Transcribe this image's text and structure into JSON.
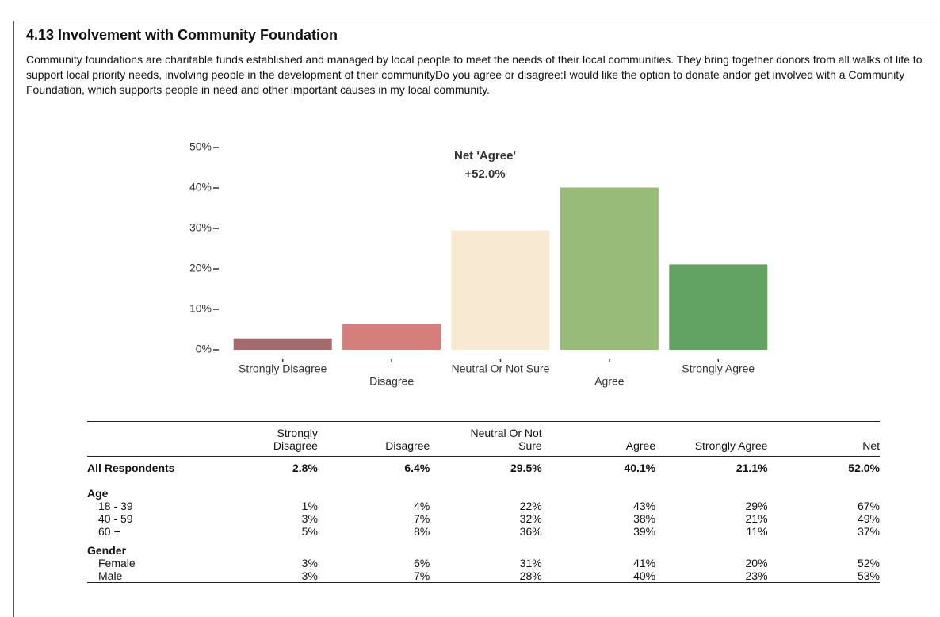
{
  "header": {
    "title": "4.13 Involvement with Community Foundation",
    "body": "Community foundations are charitable funds established and managed by local people to meet the needs of their local communities. They bring together donors from all walks of life to support local priority needs, involving people in the development of their communityDo you agree or disagree:I would like the option to donate andor get involved with a Community Foundation, which supports people in need and other important causes in my local community."
  },
  "chart_data": {
    "type": "bar",
    "categories": [
      "Strongly Disagree",
      "Disagree",
      "Neutral Or Not Sure",
      "Agree",
      "Strongly Agree"
    ],
    "values": [
      2.8,
      6.4,
      29.5,
      40.1,
      21.1
    ],
    "colors": [
      "#a36b6b",
      "#d47f7b",
      "#f8e9d2",
      "#98bb78",
      "#62a262"
    ],
    "ylim": [
      0,
      50
    ],
    "yticks": [
      {
        "value": 0,
        "label": "0%"
      },
      {
        "value": 10,
        "label": "10%"
      },
      {
        "value": 20,
        "label": "20%"
      },
      {
        "value": 30,
        "label": "30%"
      },
      {
        "value": 40,
        "label": "40%"
      },
      {
        "value": 50,
        "label": "50%"
      }
    ],
    "annotation": [
      "Net 'Agree'",
      "+52.0%"
    ]
  },
  "table": {
    "header": [
      "Strongly Disagree",
      "Disagree",
      "Neutral Or Not Sure",
      "Agree",
      "Strongly Agree",
      "Net"
    ],
    "overall": {
      "label": "All Respondents",
      "values": [
        "2.8%",
        "6.4%",
        "29.5%",
        "40.1%",
        "21.1%",
        "52.0%"
      ]
    },
    "groups": [
      {
        "label": "Age",
        "rows": [
          {
            "label": "18 - 39",
            "values": [
              "1%",
              "4%",
              "22%",
              "43%",
              "29%",
              "67%"
            ]
          },
          {
            "label": "40 - 59",
            "values": [
              "3%",
              "7%",
              "32%",
              "38%",
              "21%",
              "49%"
            ]
          },
          {
            "label": "60 +",
            "values": [
              "5%",
              "8%",
              "36%",
              "39%",
              "11%",
              "37%"
            ]
          }
        ]
      },
      {
        "label": "Gender",
        "rows": [
          {
            "label": "Female",
            "values": [
              "3%",
              "6%",
              "31%",
              "41%",
              "20%",
              "52%"
            ]
          },
          {
            "label": "Male",
            "values": [
              "3%",
              "7%",
              "28%",
              "40%",
              "23%",
              "53%"
            ]
          }
        ]
      }
    ]
  }
}
